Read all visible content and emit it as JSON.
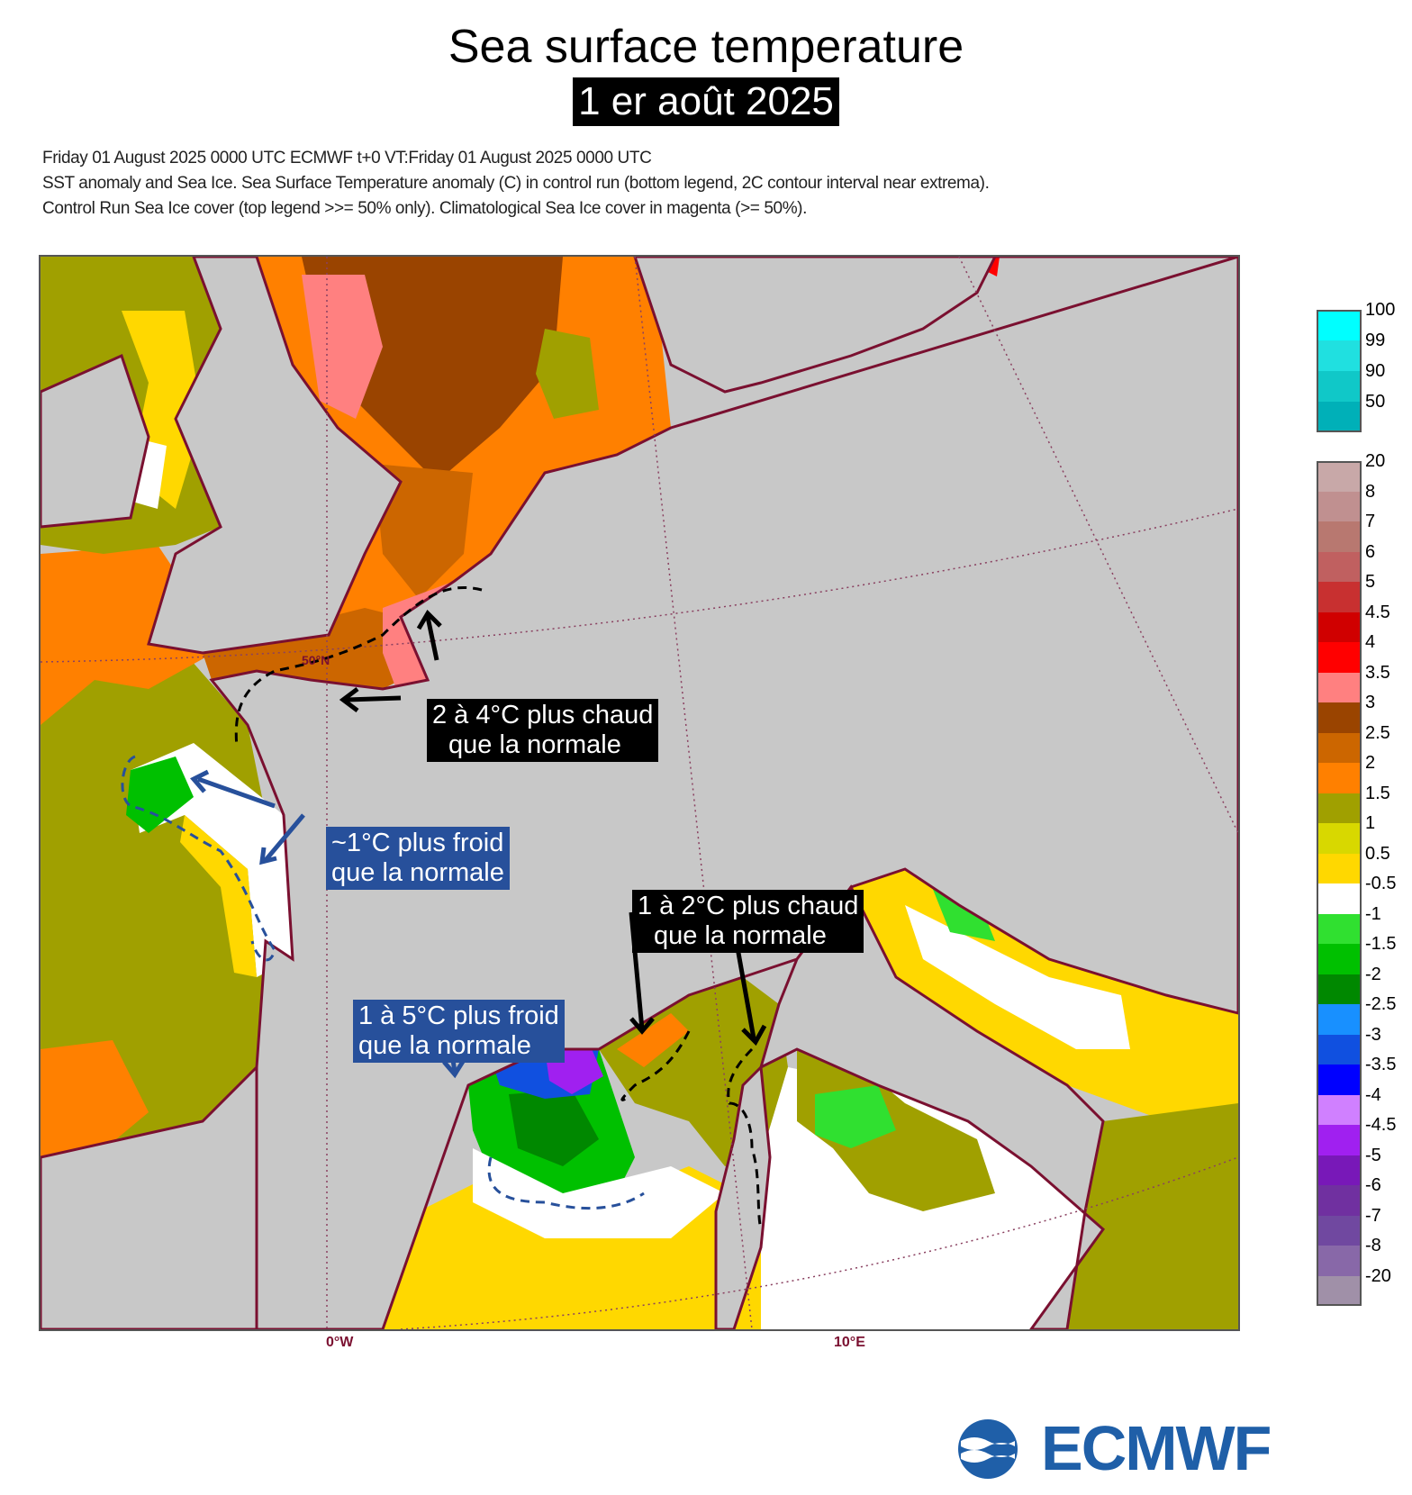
{
  "title": "Sea surface temperature",
  "subtitle": "1 er août 2025",
  "meta_lines": [
    "Friday 01 August 2025 0000 UTC  ECMWF  t+0  VT:Friday 01 August 2025 0000 UTC",
    "SST anomaly and Sea Ice. Sea Surface Temperature anomaly (C) in control run (bottom legend, 2C contour interval near extrema).",
    "Control Run Sea Ice cover (top legend >>= 50% only). Climatological Sea Ice cover in magenta (>= 50%)."
  ],
  "axis": {
    "lon_0": "0°W",
    "lon_10": "10°E",
    "lat_label": "50°N"
  },
  "annotations": [
    {
      "text_1": "2 à 4°C plus chaud",
      "text_2": "que la normale",
      "style": "black"
    },
    {
      "text_1": "~1°C plus froid",
      "text_2": "que la normale",
      "style": "blue"
    },
    {
      "text_1": "1 à 2°C plus chaud",
      "text_2": "que la normale",
      "style": "black"
    },
    {
      "text_1": "1 à 5°C plus froid",
      "text_2": "que la normale",
      "style": "blue"
    }
  ],
  "ice_legend": [
    {
      "label": "100",
      "color": "#00ffff"
    },
    {
      "label": "99",
      "color": "#20e0e0"
    },
    {
      "label": "90",
      "color": "#10c8c8"
    },
    {
      "label": "50",
      "color": "#00b0b8"
    }
  ],
  "sst_legend": [
    {
      "label": "20",
      "color": "#c8a8a8"
    },
    {
      "label": "8",
      "color": "#c09090"
    },
    {
      "label": "7",
      "color": "#b87870"
    },
    {
      "label": "6",
      "color": "#c06060"
    },
    {
      "label": "5",
      "color": "#c83030"
    },
    {
      "label": "4.5",
      "color": "#d00000"
    },
    {
      "label": "4",
      "color": "#ff0000"
    },
    {
      "label": "3.5",
      "color": "#ff8080"
    },
    {
      "label": "3",
      "color": "#9a4400"
    },
    {
      "label": "2.5",
      "color": "#cc6600"
    },
    {
      "label": "2",
      "color": "#ff8000"
    },
    {
      "label": "1.5",
      "color": "#a0a000"
    },
    {
      "label": "1",
      "color": "#d8d800"
    },
    {
      "label": "0.5",
      "color": "#ffd800"
    },
    {
      "label": "-0.5",
      "color": "#ffffff"
    },
    {
      "label": "-1",
      "color": "#30e030"
    },
    {
      "label": "-1.5",
      "color": "#00c000"
    },
    {
      "label": "-2",
      "color": "#008800"
    },
    {
      "label": "-2.5",
      "color": "#1890ff"
    },
    {
      "label": "-3",
      "color": "#1050e0"
    },
    {
      "label": "-3.5",
      "color": "#0000ff"
    },
    {
      "label": "-4",
      "color": "#d080ff"
    },
    {
      "label": "-4.5",
      "color": "#a020f0"
    },
    {
      "label": "-5",
      "color": "#7818b8"
    },
    {
      "label": "-6",
      "color": "#7030a0"
    },
    {
      "label": "-7",
      "color": "#7048a0"
    },
    {
      "label": "-8",
      "color": "#8868a8"
    },
    {
      "label": "-20",
      "color": "#a090a8"
    }
  ],
  "logo": {
    "text": "ECMWF",
    "color": "#1f5fa8"
  },
  "colors": {
    "land": "#c8c8c8",
    "coast": "#7a1030",
    "warm_arrow": "#000000",
    "cold_arrow": "#27509b"
  }
}
